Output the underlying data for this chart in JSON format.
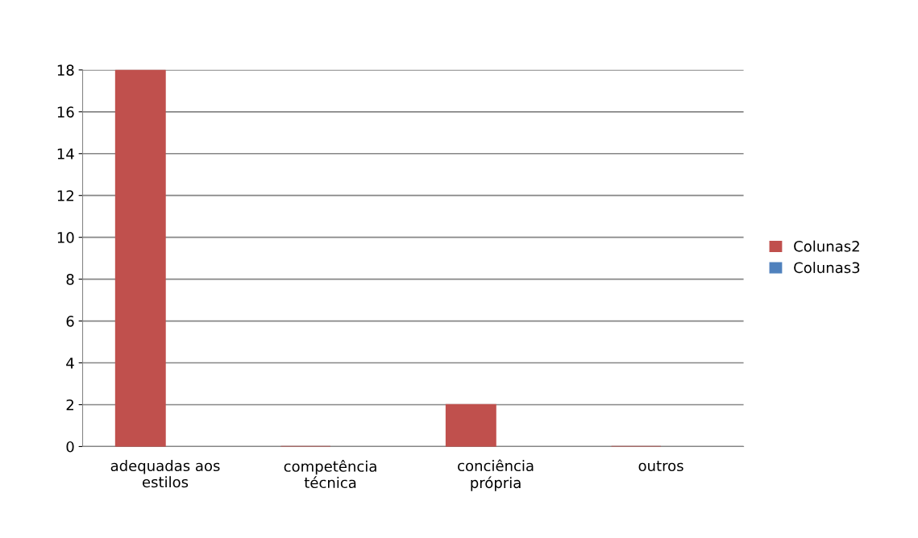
{
  "chart_data": {
    "type": "bar",
    "categories": [
      "adequadas aos\nestilos",
      "competência\ntécnica",
      "conciência\nprópria",
      "outros"
    ],
    "series": [
      {
        "name": "Colunas2",
        "color": "#c0504d",
        "values": [
          18,
          0,
          2,
          0
        ]
      },
      {
        "name": "Colunas3",
        "color": "#4f81bd",
        "values": [
          null,
          null,
          null,
          null
        ]
      }
    ],
    "ylim": [
      0,
      18
    ],
    "yticks": [
      0,
      2,
      4,
      6,
      8,
      10,
      12,
      14,
      16,
      18
    ],
    "grid": "y",
    "legend": "right"
  }
}
